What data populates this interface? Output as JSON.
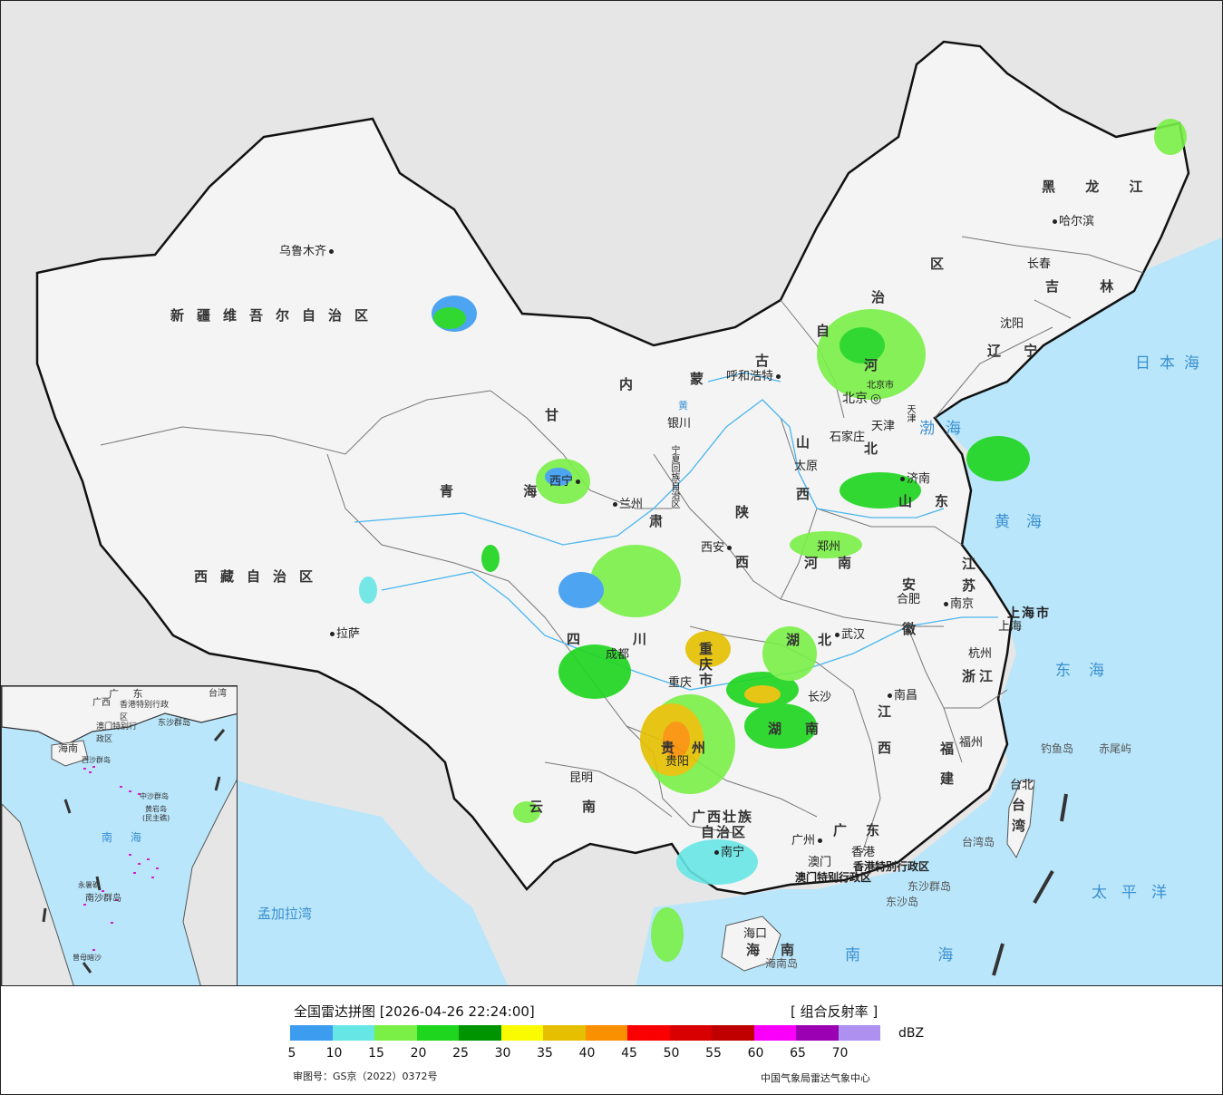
{
  "header": {
    "title": "全国雷达拼图 [2026-04-26 22:24:00]",
    "product": "[ 组合反射率 ]"
  },
  "legend": {
    "unit": "dBZ",
    "colors": [
      "#3c9cf0",
      "#67e6e6",
      "#7af047",
      "#1ed61e",
      "#009400",
      "#fafa00",
      "#e6c000",
      "#fa9000",
      "#fa0000",
      "#d80000",
      "#c00000",
      "#fa00fa",
      "#9b00b3",
      "#ad90f0"
    ],
    "ticks": [
      "5",
      "10",
      "15",
      "20",
      "25",
      "30",
      "35",
      "40",
      "45",
      "50",
      "55",
      "60",
      "65",
      "70"
    ]
  },
  "footer": {
    "approval": "审图号：GS京（2022）0372号",
    "org": "中国气象局雷达气象中心"
  },
  "colors": {
    "sea": "#b9e6fb",
    "land_china": "#f4f4f4",
    "land_other": "#e6e6e6",
    "border": "#111111"
  },
  "map": {
    "regions": [
      "新疆维吾尔自治区",
      "西藏自治区",
      "青海",
      "甘肃",
      "内蒙古自治区",
      "黑龙江",
      "吉林",
      "辽宁",
      "河北",
      "山西",
      "陕西",
      "河南",
      "山东",
      "江苏",
      "安徽",
      "湖北",
      "四川",
      "重庆市",
      "贵州",
      "云南",
      "湖南",
      "江西",
      "浙江",
      "福建",
      "广东",
      "广西壮族自治区",
      "海南",
      "台湾",
      "宁夏回族自治区",
      "北京市",
      "天津市",
      "上海市",
      "香港特别行政区",
      "澳门特别行政区"
    ],
    "region_labels": {
      "xinjiang": "新疆维吾尔自治区",
      "xizang": "西藏自治区",
      "qinghai": "青 海",
      "gansu": "甘",
      "neimenggu_1": "内",
      "neimenggu_2": "蒙",
      "neimenggu_3": "古",
      "neimenggu_4": "自",
      "neimenggu_5": "治",
      "neimenggu_6": "区",
      "heilongjiang": "黑 龙 江",
      "jilin": "吉 林",
      "liaoning": "辽 宁",
      "hebei_1": "河",
      "hebei_2": "北",
      "shanxi_1": "山",
      "shanxi_2": "西",
      "shaanxi_1": "陕",
      "shaanxi_2": "西",
      "henan_1": "河",
      "henan_2": "南",
      "shandong_1": "山",
      "shandong_2": "东",
      "jiangsu_1": "江",
      "jiangsu_2": "苏",
      "anhui_1": "安",
      "anhui_2": "徽",
      "hubei_1": "湖",
      "hubei_2": "北",
      "sichuan_1": "四",
      "sichuan_2": "川",
      "chongqing": "重庆市",
      "guizhou_1": "贵",
      "guizhou_2": "州",
      "yunnan_1": "云",
      "yunnan_2": "南",
      "hunan_1": "湖",
      "hunan_2": "南",
      "jiangxi_1": "江",
      "jiangxi_2": "西",
      "zhejiang": "浙江",
      "fujian_1": "福",
      "fujian_2": "建",
      "guangdong_1": "广",
      "guangdong_2": "东",
      "guangxi": "广西壮族",
      "guangxi_2": "自治区",
      "hainan_1": "海",
      "hainan_2": "南",
      "taiwan_1": "台",
      "taiwan_2": "湾",
      "ningxia": "宁夏回族自治区",
      "gansu_2": "肃",
      "tianjin": "天津",
      "beijing": "北京市",
      "shanghai": "上海市",
      "hk": "香港特别行政区",
      "macao": "澳门特别行政区"
    },
    "cities": {
      "urumqi": "乌鲁木齐",
      "lhasa": "拉萨",
      "xining": "西宁",
      "lanzhou": "兰州",
      "yinchuan": "银川",
      "hohhot": "呼和浩特",
      "beijing": "北京",
      "tianjin": "天津",
      "shijiazhuang": "石家庄",
      "taiyuan": "太原",
      "jinan": "济南",
      "zhengzhou": "郑州",
      "xian": "西安",
      "chengdu": "成都",
      "chongqing": "重庆",
      "guiyang": "贵阳",
      "kunming": "昆明",
      "nanning": "南宁",
      "guangzhou": "广州",
      "aomen": "澳门",
      "xianggang": "香港",
      "haikou": "海口",
      "changsha": "长沙",
      "wuhan": "武汉",
      "nanchang": "南昌",
      "hefei": "合肥",
      "nanjing": "南京",
      "shanghai": "上海",
      "hangzhou": "杭州",
      "fuzhou": "福州",
      "taibei": "台北",
      "shenyang": "沈阳",
      "changchun": "长春",
      "harbin": "哈尔滨"
    },
    "islands": {
      "diaoyu": "钓鱼岛",
      "chiwei": "赤尾屿",
      "taiwan_island": "台湾岛",
      "dongsha": "东沙群岛",
      "dongsha_dao": "东沙岛",
      "hainan_dao": "海南岛"
    },
    "seas": {
      "ribenhai": "日本海",
      "bohai": "渤海",
      "huanghai": "黄海",
      "donghai": "东海",
      "taipingyang": "太平洋",
      "nanhai": "南 海",
      "mengjiala": "孟加拉湾",
      "yellow_river": "黄"
    },
    "inset_labels": {
      "nanhai": "南 海",
      "hainan": "海南",
      "guangdong": "广 东",
      "guangxi": "广西",
      "taiwan": "台湾",
      "xianggang": "香港特别行政区",
      "aomen": "澳门特别行政区",
      "dongsha": "东沙群岛",
      "xisha": "西沙群岛",
      "zhongsha": "中沙群岛",
      "huangyan": "黄岩岛",
      "huangyan2": "(民主礁)",
      "yongshu": "永暑礁",
      "nansha": "南沙群岛",
      "zengmu": "曾母暗沙"
    }
  }
}
